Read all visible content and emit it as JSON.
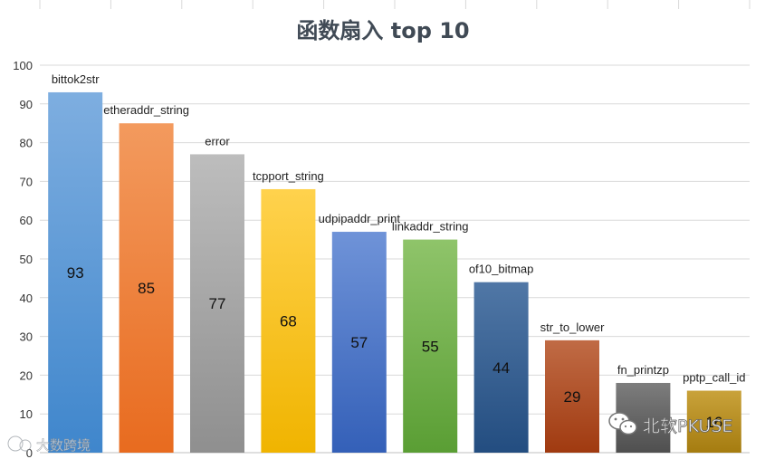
{
  "chart_data": {
    "type": "bar",
    "title": "函数扇入 top 10",
    "xlabel": "",
    "ylabel": "",
    "ylim": [
      0,
      100
    ],
    "yticks": [
      0,
      10,
      20,
      30,
      40,
      50,
      60,
      70,
      80,
      90,
      100
    ],
    "grid": true,
    "categories": [
      "bittok2str",
      "etheraddr_string",
      "error",
      "tcpport_string",
      "udpipaddr_print",
      "linkaddr_string",
      "of10_bitmap",
      "str_to_lower",
      "fn_printzp",
      "pptp_call_id"
    ],
    "values": [
      93,
      85,
      77,
      68,
      57,
      55,
      44,
      29,
      18,
      16
    ],
    "value_labels": [
      "93",
      "85",
      "77",
      "68",
      "57",
      "55",
      "44",
      "29",
      "",
      "16"
    ],
    "colors": [
      [
        "#7eaee0",
        "#3f86cc"
      ],
      [
        "#f39a5e",
        "#e86b1f"
      ],
      [
        "#bdbdbd",
        "#8f8f8f"
      ],
      [
        "#ffd24d",
        "#f0b400"
      ],
      [
        "#6f93d8",
        "#3460b8"
      ],
      [
        "#8fc46a",
        "#5a9e34"
      ],
      [
        "#5077a6",
        "#234d80"
      ],
      [
        "#c06b45",
        "#a03a10"
      ],
      [
        "#7d7d7d",
        "#4f4f4f"
      ],
      [
        "#c9a23a",
        "#a57c10"
      ]
    ]
  },
  "watermarks": {
    "left": "大数跨境",
    "right": "北软PKUSE"
  }
}
